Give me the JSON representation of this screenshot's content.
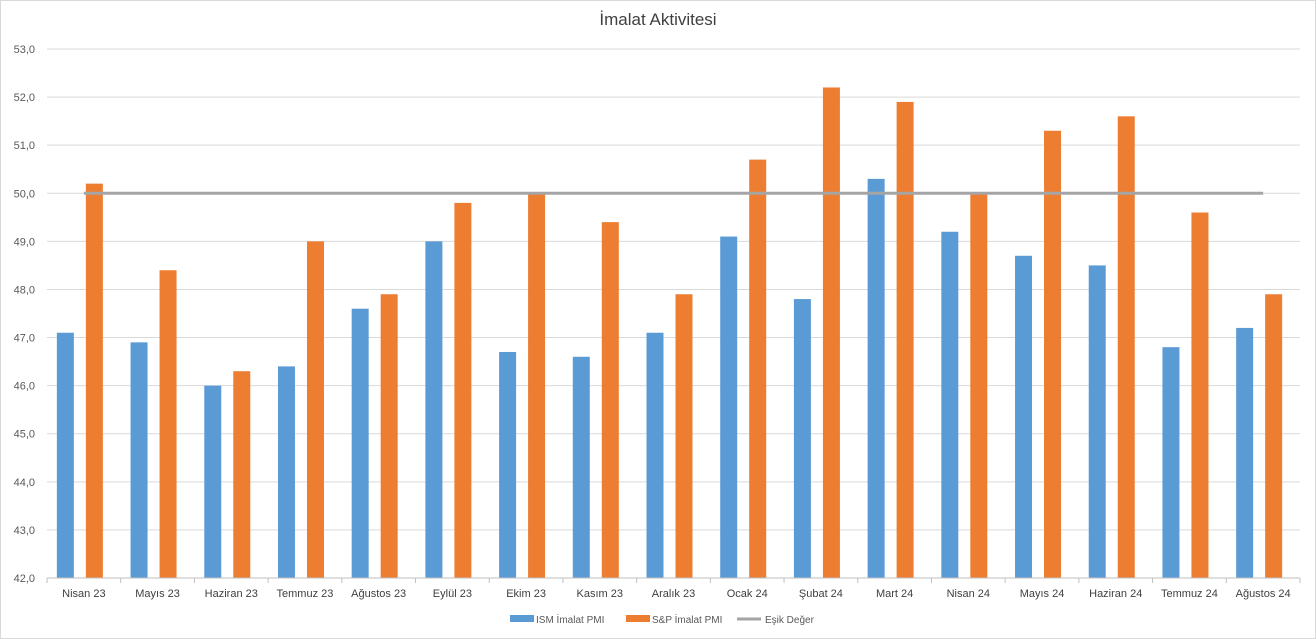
{
  "chart_data": {
    "type": "bar",
    "title": "İmalat Aktivitesi",
    "xlabel": "",
    "ylabel": "",
    "ylim": [
      42.0,
      53.0
    ],
    "yticks": [
      "42,0",
      "43,0",
      "44,0",
      "45,0",
      "46,0",
      "47,0",
      "48,0",
      "49,0",
      "50,0",
      "51,0",
      "52,0",
      "53,0"
    ],
    "grid": true,
    "legend_position": "bottom",
    "categories": [
      "Nisan 23",
      "Mayıs 23",
      "Haziran 23",
      "Temmuz 23",
      "Ağustos 23",
      "Eylül 23",
      "Ekim 23",
      "Kasım 23",
      "Aralık 23",
      "Ocak 24",
      "Şubat 24",
      "Mart 24",
      "Nisan 24",
      "Mayıs 24",
      "Haziran 24",
      "Temmuz 24",
      "Ağustos 24"
    ],
    "series": [
      {
        "name": "ISM İmalat PMI",
        "type": "bar",
        "color": "#5b9bd5",
        "values": [
          47.1,
          46.9,
          46.0,
          46.4,
          47.6,
          49.0,
          46.7,
          46.6,
          47.1,
          49.1,
          47.8,
          50.3,
          49.2,
          48.7,
          48.5,
          46.8,
          47.2
        ]
      },
      {
        "name": "S&P İmalat PMI",
        "type": "bar",
        "color": "#ed7d31",
        "values": [
          50.2,
          48.4,
          46.3,
          49.0,
          47.9,
          49.8,
          50.0,
          49.4,
          47.9,
          50.7,
          52.2,
          51.9,
          50.0,
          51.3,
          51.6,
          49.6,
          47.9
        ]
      },
      {
        "name": "Eşik Değer",
        "type": "line",
        "color": "#a5a5a5",
        "values": [
          50,
          50,
          50,
          50,
          50,
          50,
          50,
          50,
          50,
          50,
          50,
          50,
          50,
          50,
          50,
          50,
          50
        ]
      }
    ]
  }
}
